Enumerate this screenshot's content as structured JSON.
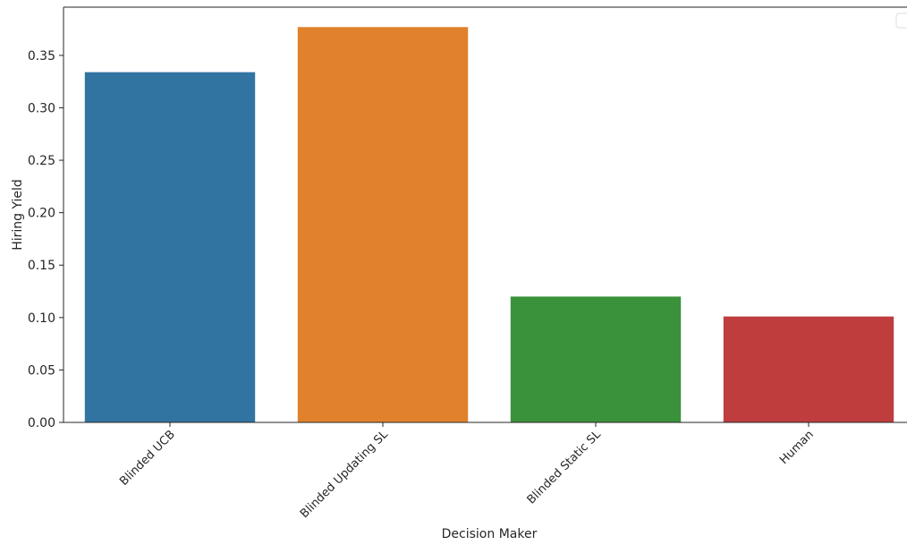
{
  "chart_data": {
    "type": "bar",
    "x_label": "Decision Maker",
    "y_label": "Hiring Yield",
    "categories": [
      "Blinded UCB",
      "Blinded Updating SL",
      "Blinded Static SL",
      "Human"
    ],
    "values": [
      0.334,
      0.377,
      0.12,
      0.101
    ],
    "colors": [
      "#3274a1",
      "#e1812c",
      "#3a923a",
      "#c03d3e"
    ],
    "ylim": [
      0,
      0.396
    ],
    "yticks": [
      {
        "value": 0,
        "label": "0.00"
      },
      {
        "value": 0.05,
        "label": "0.05"
      },
      {
        "value": 0.1,
        "label": "0.10"
      },
      {
        "value": 0.15,
        "label": "0.15"
      },
      {
        "value": 0.2,
        "label": "0.20"
      },
      {
        "value": 0.25,
        "label": "0.25"
      },
      {
        "value": 0.3,
        "label": "0.30"
      },
      {
        "value": 0.35,
        "label": "0.35"
      }
    ],
    "grid": false
  }
}
